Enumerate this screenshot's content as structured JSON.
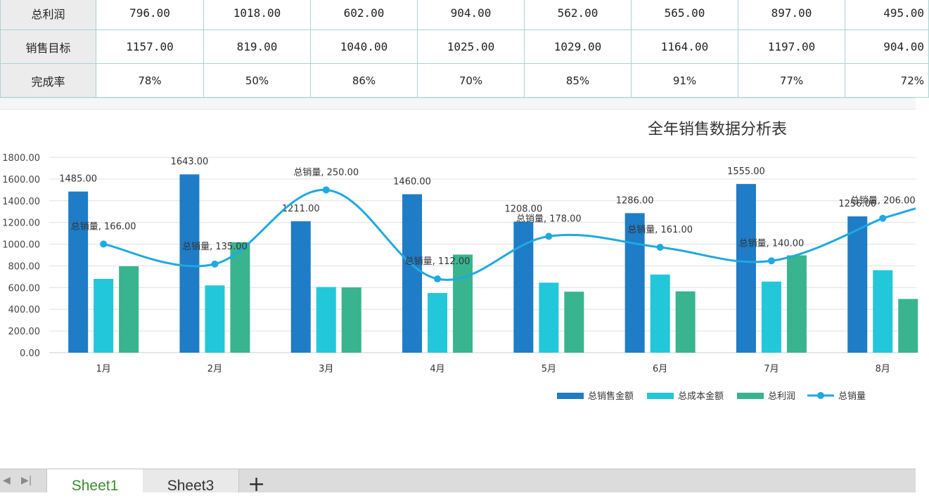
{
  "table": {
    "rows": [
      {
        "label": "总利润",
        "values": [
          "796.00",
          "1018.00",
          "602.00",
          "904.00",
          "562.00",
          "565.00",
          "897.00",
          "495.00"
        ]
      },
      {
        "label": "销售目标",
        "values": [
          "1157.00",
          "819.00",
          "1040.00",
          "1025.00",
          "1029.00",
          "1164.00",
          "1197.00",
          "904.00"
        ]
      },
      {
        "label": "完成率",
        "values": [
          "78%",
          "50%",
          "86%",
          "70%",
          "85%",
          "91%",
          "77%",
          "72%"
        ]
      }
    ]
  },
  "chart_data": {
    "type": "bar",
    "title": "全年销售数据分析表",
    "categories": [
      "1月",
      "2月",
      "3月",
      "4月",
      "5月",
      "6月",
      "7月",
      "8月"
    ],
    "y_ticks": [
      "0.00",
      "200.00",
      "400.00",
      "600.00",
      "800.00",
      "1000.00",
      "1200.00",
      "1400.00",
      "1600.00",
      "1800.00"
    ],
    "ylim": [
      0,
      1800
    ],
    "grid": true,
    "legend_position": "bottom-right",
    "series": [
      {
        "name": "总销售金额",
        "type": "bar",
        "color": "#1f7cc6",
        "values": [
          1485,
          1643,
          1211,
          1460,
          1208,
          1286,
          1555,
          1256
        ],
        "labels": [
          "1485.00",
          "1643.00",
          "1211.00",
          "1460.00",
          "1208.00",
          "1286.00",
          "1555.00",
          "1256.00"
        ]
      },
      {
        "name": "总成本金额",
        "type": "bar",
        "color": "#22c7d9",
        "values": [
          680,
          620,
          605,
          550,
          645,
          720,
          655,
          760
        ]
      },
      {
        "name": "总利润",
        "type": "bar",
        "color": "#38b48e",
        "values": [
          796,
          1018,
          602,
          904,
          562,
          565,
          897,
          495
        ]
      },
      {
        "name": "总销量",
        "type": "line",
        "color": "#1ea9e1",
        "axis": "secondary",
        "values": [
          166,
          135,
          250,
          112,
          178,
          161,
          140,
          206
        ],
        "labels": [
          "总销量, 166.00",
          "总销量, 135.00",
          "总销量, 250.00",
          "总销量, 112.00",
          "总销量, 178.00",
          "总销量, 161.00",
          "总销量, 140.00",
          "总销量, 206.00"
        ]
      }
    ]
  },
  "tabs": {
    "sheet1": "Sheet1",
    "sheet3": "Sheet3",
    "add": "+"
  }
}
